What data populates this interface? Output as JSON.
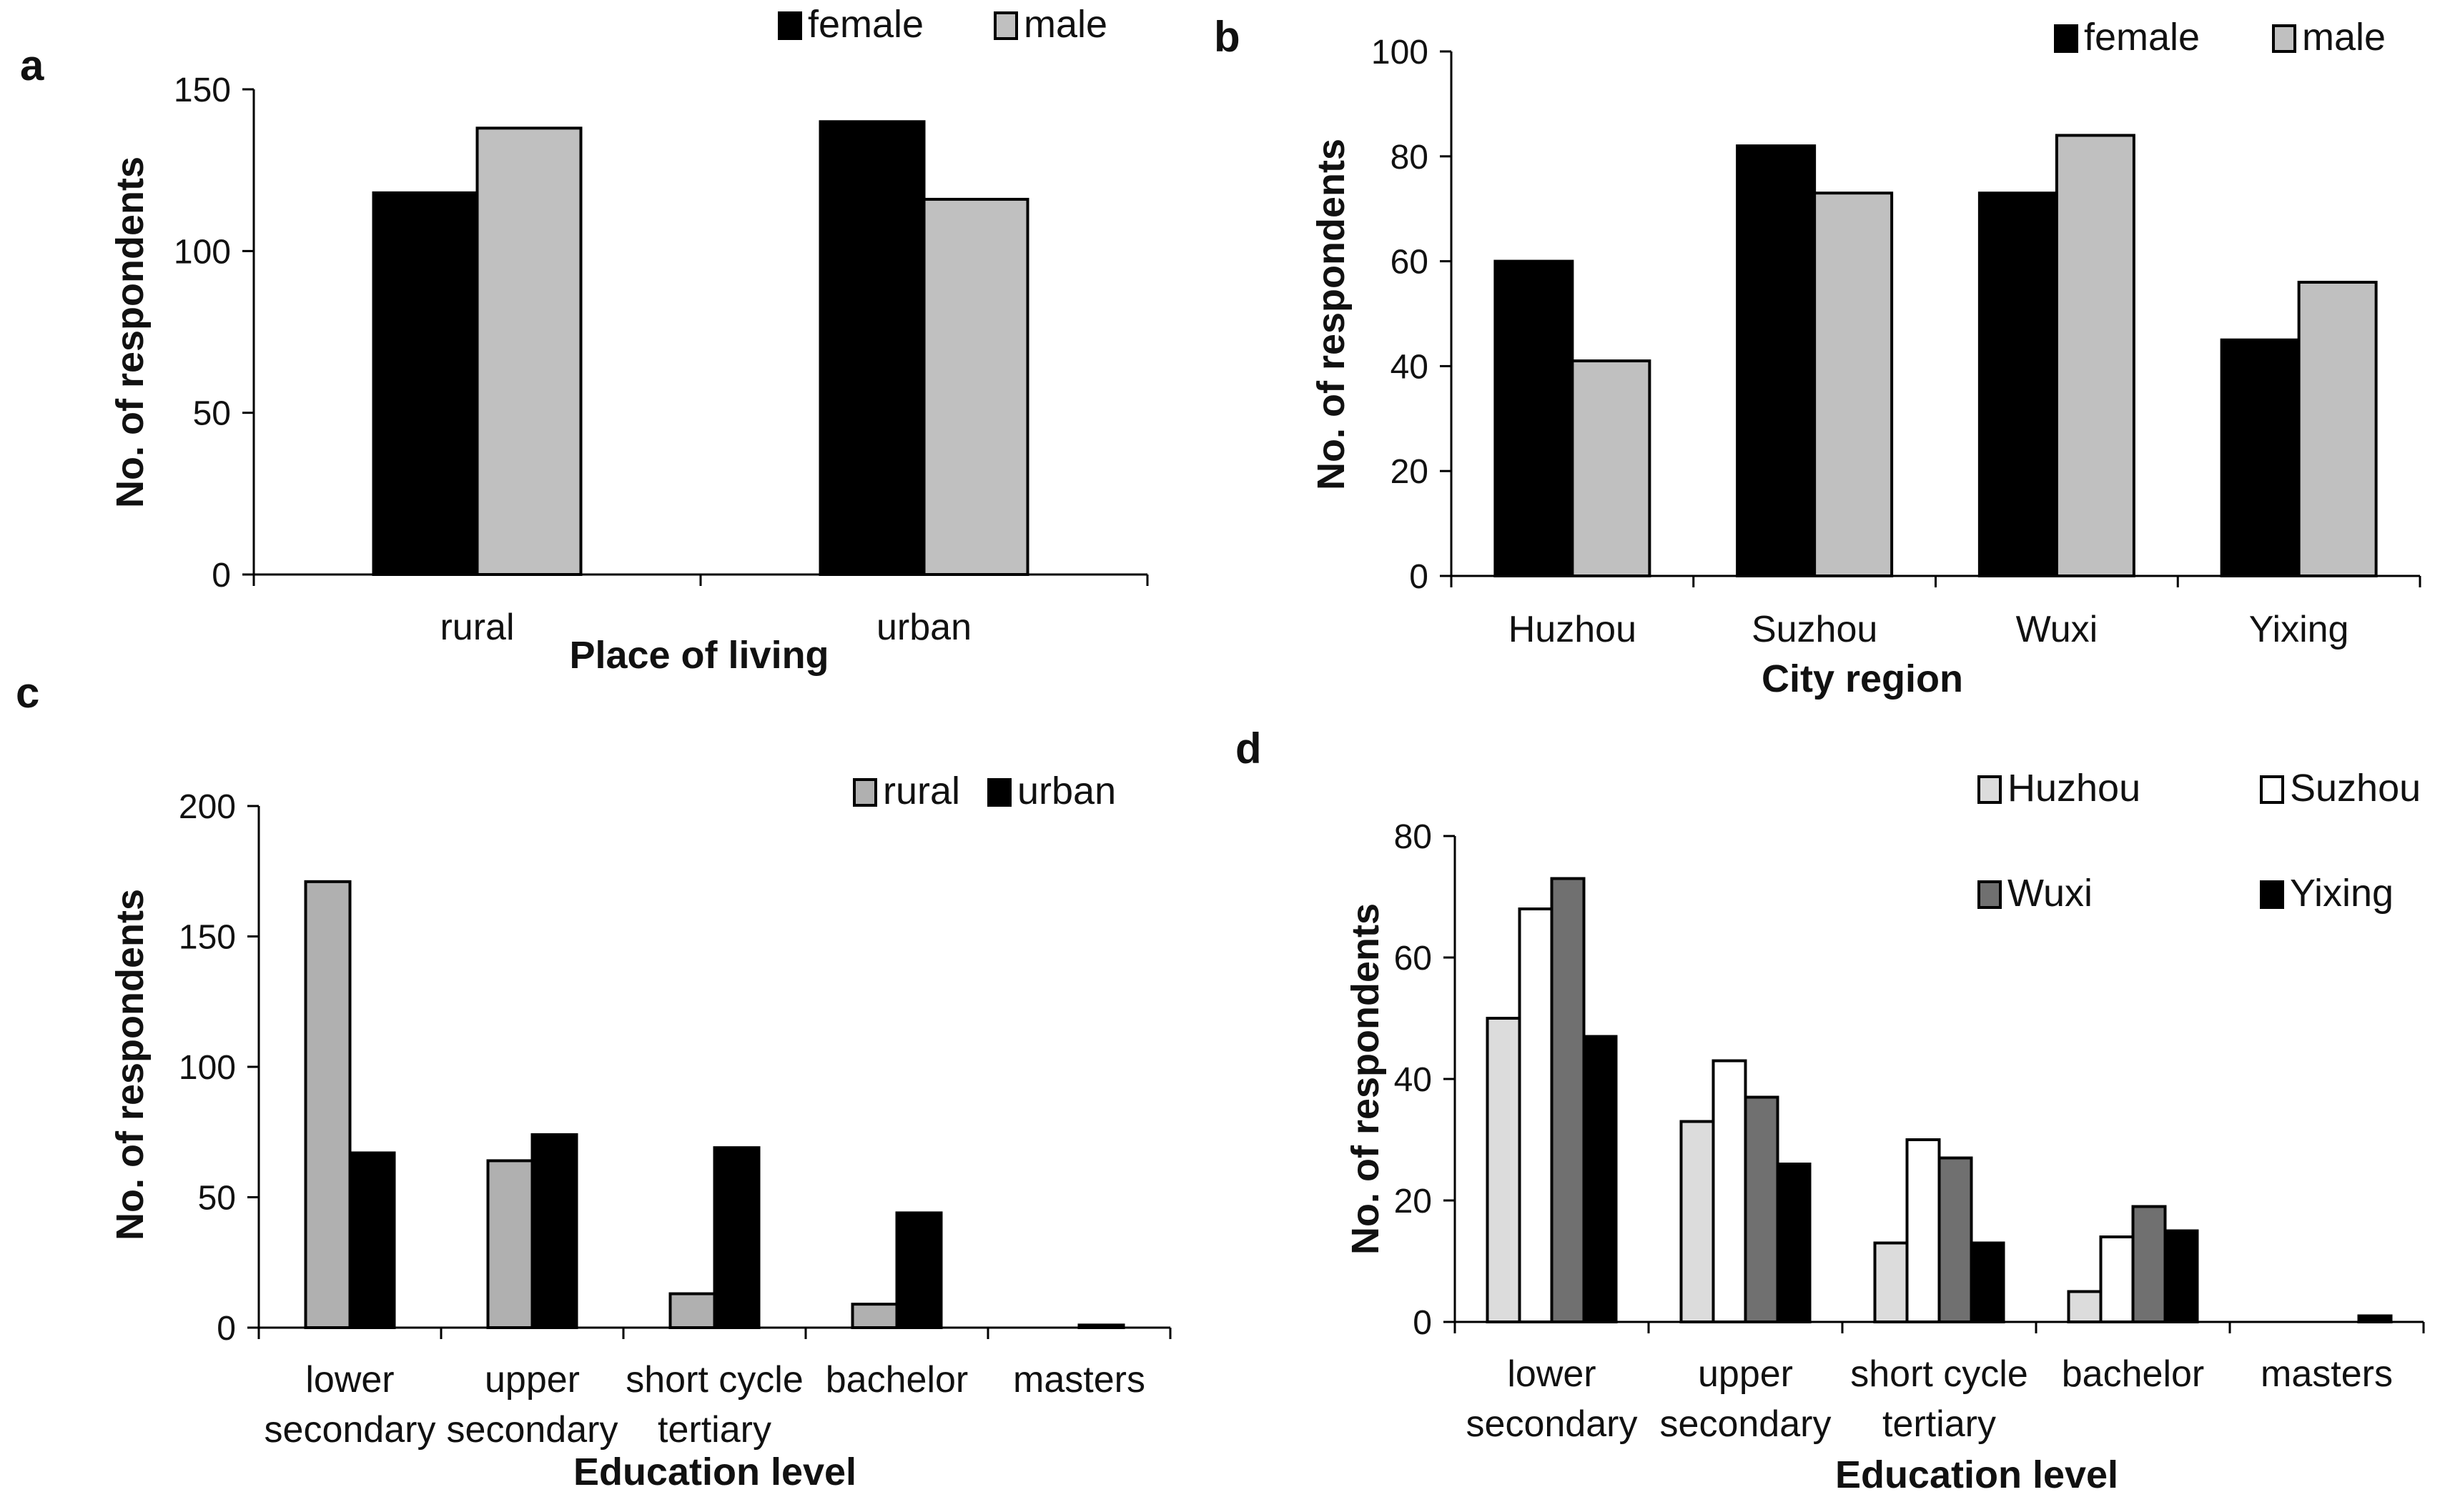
{
  "chart_data": [
    {
      "panel": "a",
      "type": "bar",
      "categories": [
        "rural",
        "urban"
      ],
      "series": [
        {
          "name": "female",
          "values": [
            118,
            140
          ],
          "color": "#000000"
        },
        {
          "name": "male",
          "values": [
            138,
            116
          ],
          "color": "#c0c0c0"
        }
      ],
      "xlabel": "Place of living",
      "ylabel": "No. of respondents",
      "ylim": [
        0,
        150
      ],
      "yticks": [
        0,
        50,
        100,
        150
      ],
      "grid": false,
      "legend_position": "top-right"
    },
    {
      "panel": "b",
      "type": "bar",
      "categories": [
        "Huzhou",
        "Suzhou",
        "Wuxi",
        "Yixing"
      ],
      "series": [
        {
          "name": "female",
          "values": [
            60,
            82,
            73,
            45
          ],
          "color": "#000000"
        },
        {
          "name": "male",
          "values": [
            41,
            73,
            84,
            56
          ],
          "color": "#c0c0c0"
        }
      ],
      "xlabel": "City region",
      "ylabel": "No. of respondents",
      "ylim": [
        0,
        100
      ],
      "yticks": [
        0,
        20,
        40,
        60,
        80,
        100
      ],
      "grid": false,
      "legend_position": "top-right"
    },
    {
      "panel": "c",
      "type": "bar",
      "categories": [
        [
          "lower",
          "secondary"
        ],
        [
          "upper",
          "secondary"
        ],
        [
          "short cycle",
          "tertiary"
        ],
        [
          "bachelor"
        ],
        [
          "masters"
        ]
      ],
      "series": [
        {
          "name": "rural",
          "values": [
            171,
            64,
            13,
            9,
            0
          ],
          "color": "#b0b0b0"
        },
        {
          "name": "urban",
          "values": [
            67,
            74,
            69,
            44,
            1
          ],
          "color": "#000000"
        }
      ],
      "xlabel": "Education level",
      "ylabel": "No. of respondents",
      "ylim": [
        0,
        200
      ],
      "yticks": [
        0,
        50,
        100,
        150,
        200
      ],
      "grid": false,
      "legend_position": "top-right"
    },
    {
      "panel": "d",
      "type": "bar",
      "categories": [
        [
          "lower",
          "secondary"
        ],
        [
          "upper",
          "secondary"
        ],
        [
          "short cycle",
          "tertiary"
        ],
        [
          "bachelor"
        ],
        [
          "masters"
        ]
      ],
      "series": [
        {
          "name": "Huzhou",
          "values": [
            50,
            33,
            13,
            5,
            0
          ],
          "color": "#dcdcdc"
        },
        {
          "name": "Suzhou",
          "values": [
            68,
            43,
            30,
            14,
            0
          ],
          "color": "#ffffff"
        },
        {
          "name": "Wuxi",
          "values": [
            73,
            37,
            27,
            19,
            0
          ],
          "color": "#707070"
        },
        {
          "name": "Yixing",
          "values": [
            47,
            26,
            13,
            15,
            1
          ],
          "color": "#000000"
        }
      ],
      "xlabel": "Education level",
      "ylabel": "No. of respondents",
      "ylim": [
        0,
        80
      ],
      "yticks": [
        0,
        20,
        40,
        60,
        80
      ],
      "grid": false,
      "legend_position": "top-right"
    }
  ]
}
